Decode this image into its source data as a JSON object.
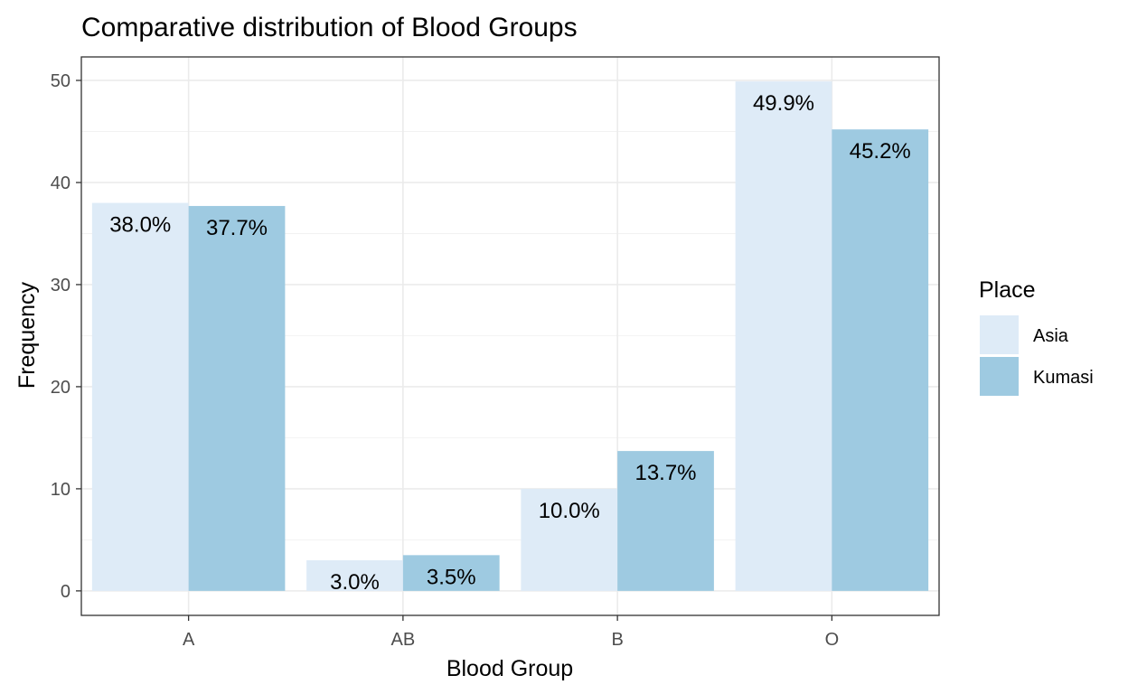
{
  "chart_data": {
    "type": "bar",
    "title": "Comparative distribution of Blood Groups",
    "xlabel": "Blood Group",
    "ylabel": "Frequency",
    "categories": [
      "A",
      "AB",
      "B",
      "O"
    ],
    "ylim": [
      -2.4,
      52.3
    ],
    "yticks": [
      0,
      10,
      20,
      30,
      40,
      50
    ],
    "grid": true,
    "legend": {
      "title": "Place",
      "position": "right"
    },
    "series": [
      {
        "name": "Asia",
        "color": "#deebf7",
        "values": [
          38.0,
          3.0,
          10.0,
          49.9
        ],
        "labels": [
          "38.0%",
          "3.0%",
          "10.0%",
          "49.9%"
        ]
      },
      {
        "name": "Kumasi",
        "color": "#9ecae1",
        "values": [
          37.7,
          3.5,
          13.7,
          45.2
        ],
        "labels": [
          "37.7%",
          "3.5%",
          "13.7%",
          "45.2%"
        ]
      }
    ]
  }
}
